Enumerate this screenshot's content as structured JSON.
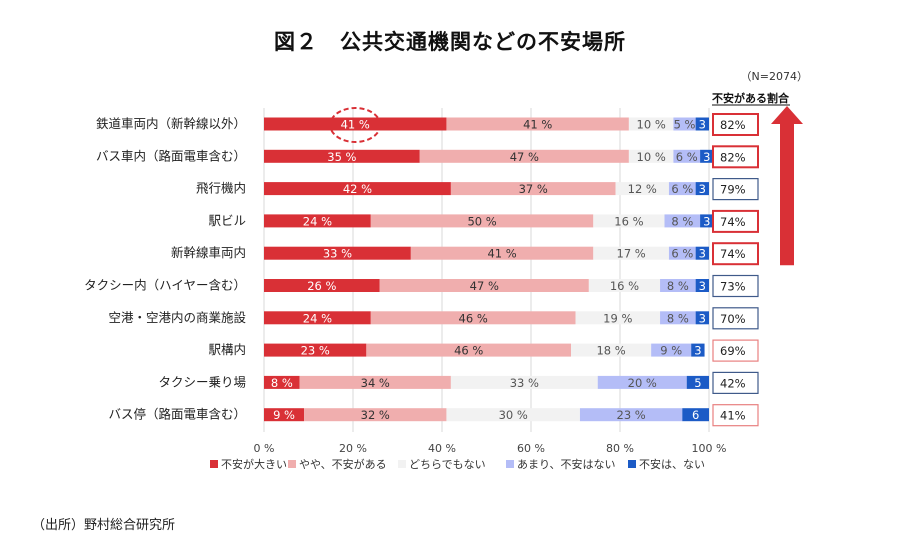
{
  "chart_data": {
    "type": "bar",
    "orientation": "horizontal-stacked-100",
    "title": "図２　公共交通機関などの不安場所",
    "sample_note": "（N=2074）",
    "right_column_header": "不安がある割合",
    "source": "（出所）野村総合研究所",
    "xlim": [
      0,
      100
    ],
    "x_ticks": [
      "0 %",
      "20 %",
      "40 %",
      "60 %",
      "80 %",
      "100 %"
    ],
    "x_tick_values": [
      0,
      20,
      40,
      60,
      80,
      100
    ],
    "grid": true,
    "legend_position": "bottom",
    "categories": [
      "鉄道車両内（新幹線以外）",
      "バス車内（路面電車含む）",
      "飛行機内",
      "駅ビル",
      "新幹線車両内",
      "タクシー内（ハイヤー含む）",
      "空港・空港内の商業施設",
      "駅構内",
      "タクシー乗り場",
      "バス停（路面電車含む）"
    ],
    "series": [
      {
        "name": "不安が大きい",
        "color": "#d93036",
        "label_color": "#ffffff",
        "values": [
          41,
          35,
          42,
          24,
          33,
          26,
          24,
          23,
          8,
          9
        ]
      },
      {
        "name": "やや、不安がある",
        "color": "#f0aeae",
        "label_color": "#333333",
        "values": [
          41,
          47,
          37,
          50,
          41,
          47,
          46,
          46,
          34,
          32
        ]
      },
      {
        "name": "どちらでもない",
        "color": "#f2f2f2",
        "label_color": "#555555",
        "values": [
          10,
          10,
          12,
          16,
          17,
          16,
          19,
          18,
          33,
          30
        ]
      },
      {
        "name": "あまり、不安はない",
        "color": "#b4bdf7",
        "label_color": "#555555",
        "values": [
          5,
          6,
          6,
          8,
          6,
          8,
          8,
          9,
          20,
          23
        ]
      },
      {
        "name": "不安は、ない",
        "color": "#1c5bc6",
        "label_color": "#ffffff",
        "values": [
          3,
          3,
          3,
          3,
          3,
          3,
          3,
          3,
          5,
          6
        ]
      }
    ],
    "value_labels": [
      [
        "41 %",
        "41 %",
        "10 %",
        "5 %",
        "3"
      ],
      [
        "35 %",
        "47 %",
        "10 %",
        "6 %",
        "3"
      ],
      [
        "42 %",
        "37 %",
        "12 %",
        "6 %",
        "3"
      ],
      [
        "24 %",
        "50 %",
        "16 %",
        "8 %",
        "3"
      ],
      [
        "33 %",
        "41 %",
        "17 %",
        "6 %",
        "3"
      ],
      [
        "26 %",
        "47 %",
        "16 %",
        "8 %",
        "3"
      ],
      [
        "24 %",
        "46 %",
        "19 %",
        "8 %",
        "3"
      ],
      [
        "23 %",
        "46 %",
        "18 %",
        "9 %",
        "3"
      ],
      [
        "8 %",
        "34 %",
        "33 %",
        "20 %",
        "5"
      ],
      [
        "9 %",
        "32 %",
        "30 %",
        "23 %",
        "6"
      ]
    ],
    "anxiety_share": [
      "82%",
      "82%",
      "79%",
      "74%",
      "74%",
      "73%",
      "70%",
      "69%",
      "42%",
      "41%"
    ],
    "anxiety_box_style": [
      "red-bold",
      "red-bold",
      "blue",
      "red-bold",
      "red-bold",
      "blue",
      "blue",
      "red-light",
      "blue",
      "red-light"
    ],
    "box_colors": {
      "red-bold": "#d93036",
      "red-light": "#e88080",
      "blue": "#3f5a8a"
    },
    "highlight": {
      "category_index": 0,
      "series_index": 0,
      "style": "dashed-ellipse",
      "color": "#d93036"
    },
    "arrow": {
      "direction": "up",
      "color": "#d93036",
      "spans_rows": [
        0,
        4
      ]
    }
  }
}
